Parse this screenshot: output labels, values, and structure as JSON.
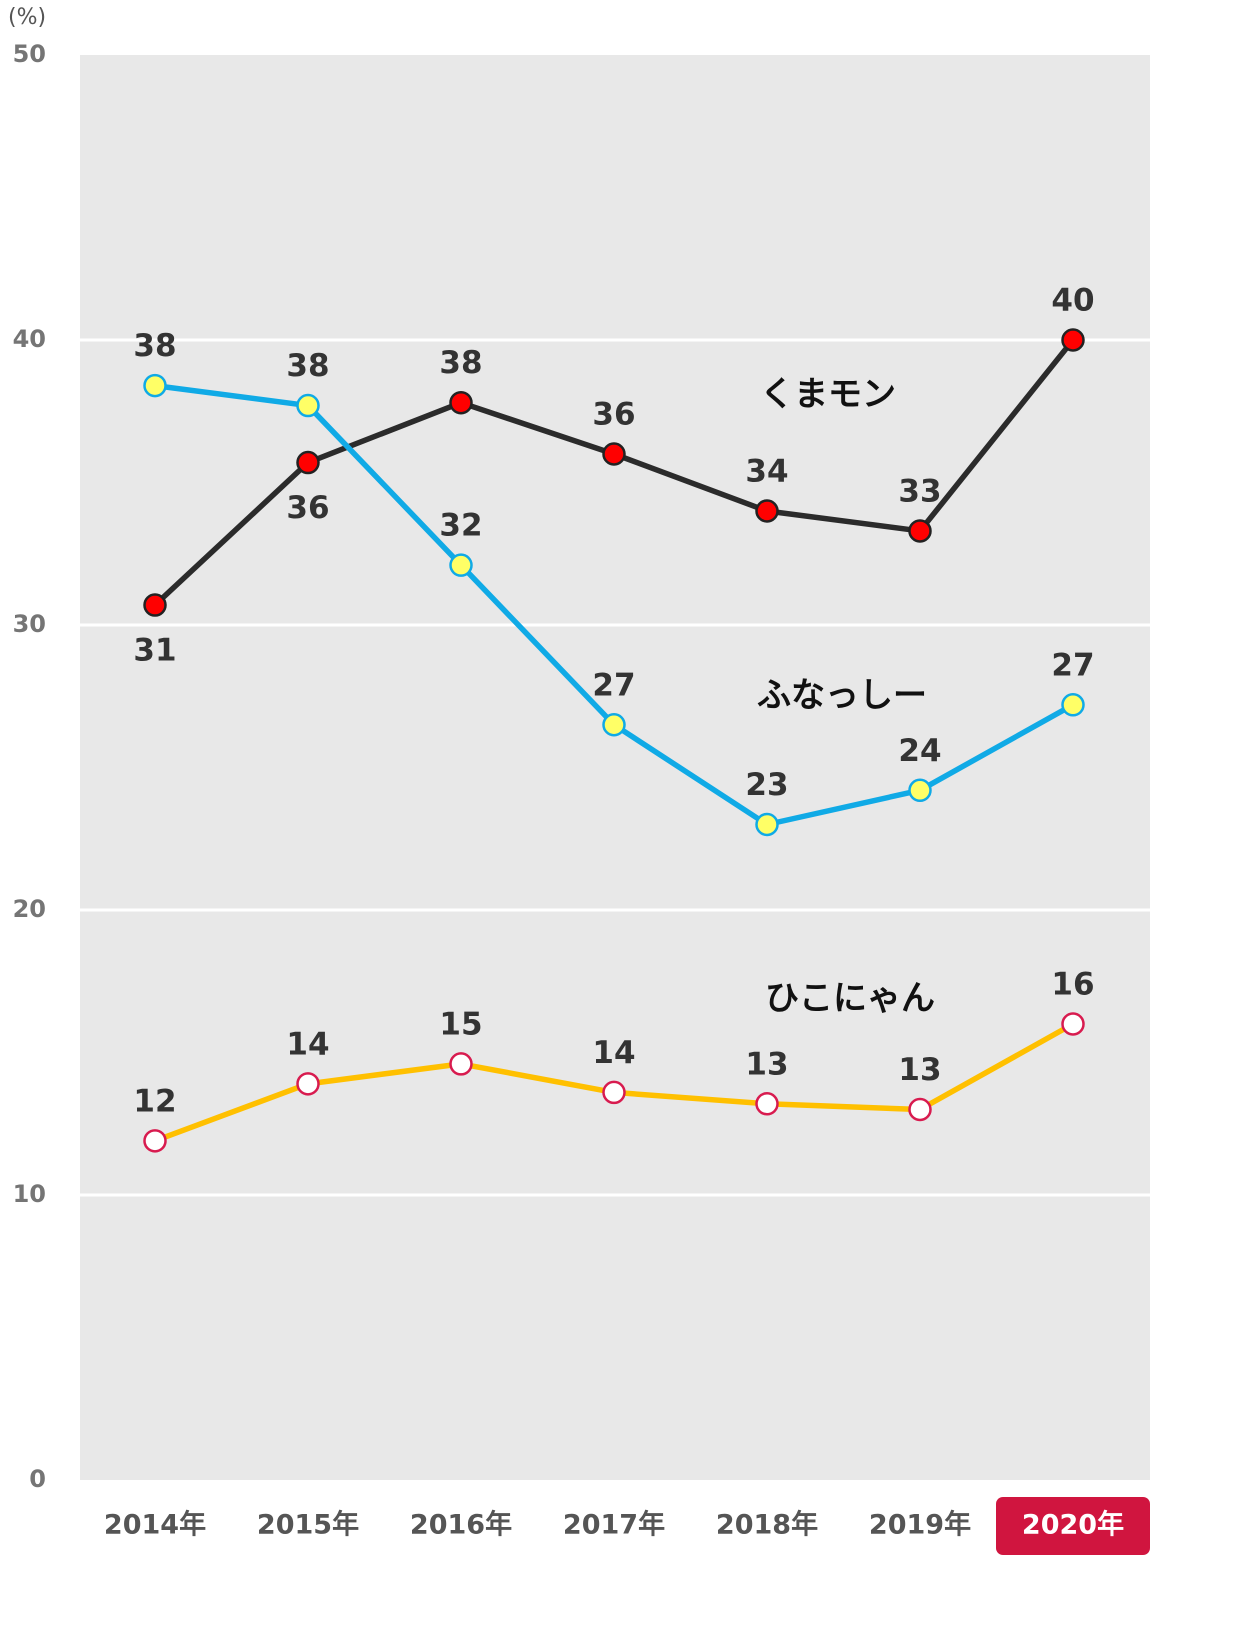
{
  "chart_data": {
    "type": "line",
    "unit_label": "(%)",
    "x": [
      "2014年",
      "2015年",
      "2016年",
      "2017年",
      "2018年",
      "2019年",
      "2020年"
    ],
    "highlight_category": "2020年",
    "ylim": [
      0,
      50
    ],
    "yticks": [
      0,
      10,
      20,
      30,
      40,
      50
    ],
    "grid": true,
    "series": [
      {
        "name": "くまモン",
        "line_color": "#2b2b2b",
        "marker_fill": "#ff0000",
        "marker_stroke": "#222222",
        "values": [
          30.7,
          35.7,
          37.8,
          36.0,
          34.0,
          33.3,
          40.0
        ],
        "labels": [
          "31",
          "36",
          "38",
          "36",
          "34",
          "33",
          "40"
        ],
        "label_position": [
          "below",
          "below",
          "above",
          "above",
          "above",
          "above",
          "above"
        ]
      },
      {
        "name": "ふなっしー",
        "line_color": "#10aae6",
        "marker_fill": "#ffff66",
        "marker_stroke": "#10aae6",
        "values": [
          38.4,
          37.7,
          32.1,
          26.5,
          23.0,
          24.2,
          27.2
        ],
        "labels": [
          "38",
          "38",
          "32",
          "27",
          "23",
          "24",
          "27"
        ],
        "label_position": [
          "above",
          "above",
          "above",
          "above",
          "above",
          "above",
          "above"
        ]
      },
      {
        "name": "ひこにゃん",
        "line_color": "#ffc000",
        "marker_fill": "#ffffff",
        "marker_stroke": "#d81b4f",
        "values": [
          11.9,
          13.9,
          14.6,
          13.6,
          13.2,
          13.0,
          16.0
        ],
        "labels": [
          "12",
          "14",
          "15",
          "14",
          "13",
          "13",
          "16"
        ],
        "label_position": [
          "above",
          "above",
          "above",
          "above",
          "above",
          "above",
          "above"
        ]
      }
    ],
    "colors": {
      "plot_background": "#e8e8e8",
      "gridline": "#ffffff",
      "highlight_box": "#d0153f"
    }
  }
}
